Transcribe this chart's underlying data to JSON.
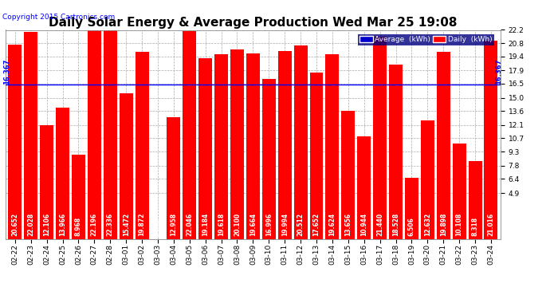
{
  "title": "Daily Solar Energy & Average Production Wed Mar 25 19:08",
  "copyright": "Copyright 2015 Cartronics.com",
  "categories": [
    "02-22",
    "02-23",
    "02-24",
    "02-25",
    "02-26",
    "02-27",
    "02-28",
    "03-01",
    "03-02",
    "03-03",
    "03-04",
    "03-05",
    "03-06",
    "03-07",
    "03-08",
    "03-09",
    "03-10",
    "03-11",
    "03-12",
    "03-13",
    "03-14",
    "03-15",
    "03-16",
    "03-17",
    "03-18",
    "03-19",
    "03-20",
    "03-21",
    "03-22",
    "03-23",
    "03-24"
  ],
  "values": [
    20.652,
    22.028,
    12.106,
    13.966,
    8.968,
    22.196,
    22.336,
    15.472,
    19.872,
    0.0,
    12.958,
    22.046,
    19.184,
    19.618,
    20.1,
    19.664,
    16.996,
    19.994,
    20.512,
    17.652,
    19.624,
    13.656,
    10.944,
    21.44,
    18.528,
    6.506,
    12.632,
    19.898,
    10.108,
    8.318,
    21.016
  ],
  "average": 16.367,
  "bar_color": "#ff0000",
  "average_line_color": "#0000ff",
  "background_color": "#ffffff",
  "ylim_min": 4.9,
  "ylim_max": 22.2,
  "yticks": [
    4.9,
    6.4,
    7.8,
    9.3,
    10.7,
    12.1,
    13.6,
    15.0,
    16.5,
    17.9,
    19.4,
    20.8,
    22.2
  ],
  "avg_label": "16.367",
  "grid_color": "#aaaaaa",
  "title_fontsize": 11,
  "copyright_fontsize": 6.5,
  "bar_value_fontsize": 5.5,
  "tick_fontsize": 6.5,
  "legend_avg_color": "#0000cc",
  "legend_daily_color": "#ff0000",
  "legend_bg_color": "#000080"
}
